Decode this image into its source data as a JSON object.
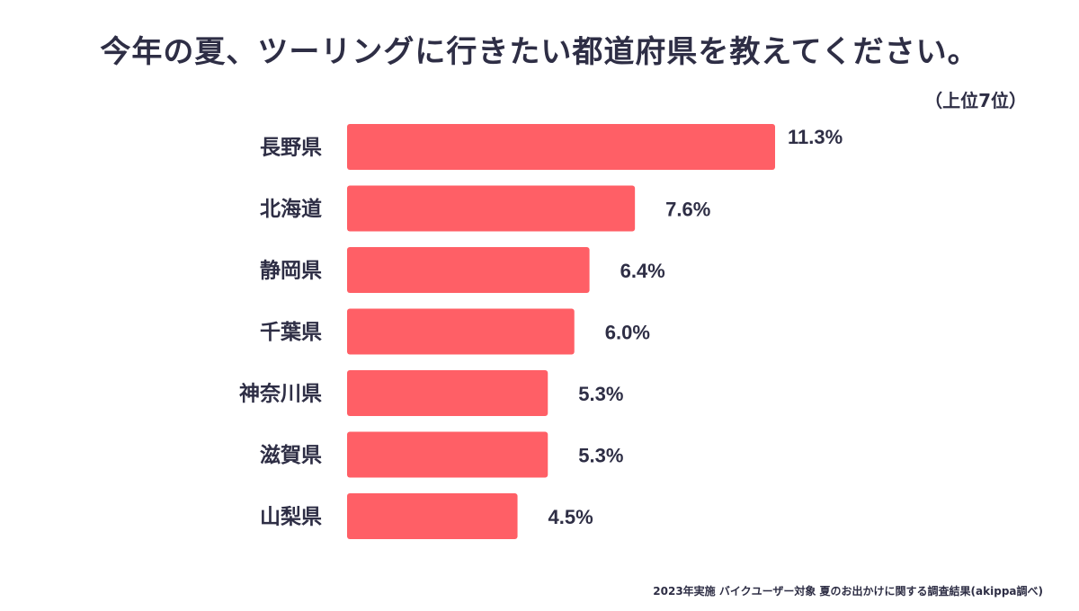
{
  "title": "今年の夏、ツーリングに行きたい都道府県を教えてください。",
  "subtitle": "（上位7位）",
  "source": "2023年実施 バイクユーザー対象 夏のお出かけに関する調査結果(akippa調べ)",
  "colors": {
    "bar": "#ff5f66",
    "text": "#2e2e45"
  },
  "chart_data": {
    "type": "bar",
    "orientation": "horizontal",
    "categories": [
      "長野県",
      "北海道",
      "静岡県",
      "千葉県",
      "神奈川県",
      "滋賀県",
      "山梨県"
    ],
    "values": [
      11.3,
      7.6,
      6.4,
      6.0,
      5.3,
      5.3,
      4.5
    ],
    "value_labels": [
      "11.3%",
      "7.6%",
      "6.4%",
      "6.0%",
      "5.3%",
      "5.3%",
      "4.5%"
    ],
    "unit": "%",
    "grid": false,
    "legend": "none"
  }
}
